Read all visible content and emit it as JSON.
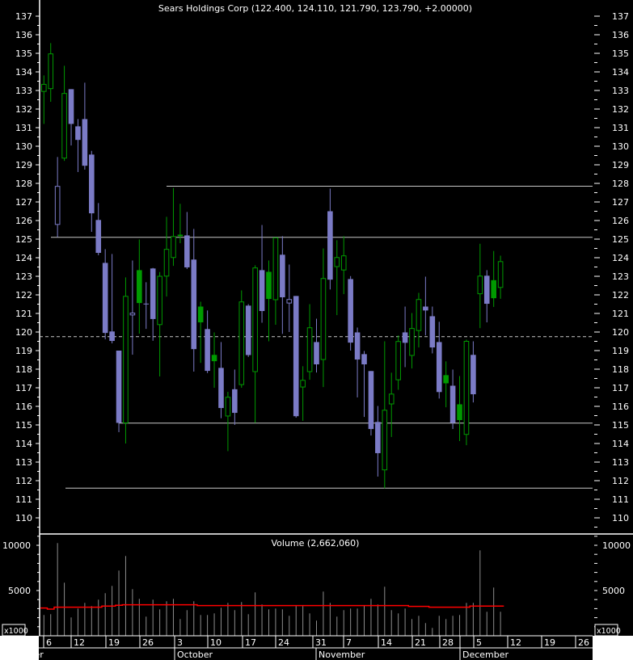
{
  "chart_data": [
    {
      "type": "candlestick",
      "title": "Sears Holdings Corp (122.400, 124.110, 121.790, 123.790, +2.00000)",
      "ylim": [
        109.5,
        137.5
      ],
      "y_ticks": [
        137,
        136,
        135,
        134,
        133,
        132,
        131,
        130,
        129,
        128,
        127,
        126,
        125,
        124,
        123,
        122,
        121,
        120,
        119,
        118,
        117,
        116,
        115,
        114,
        113,
        112,
        111,
        110
      ],
      "colors": {
        "up": "#009a00",
        "down": "#7b7bc6",
        "lines": "#c8c8c8"
      },
      "horizontal_lines": [
        127.85,
        125.1,
        115.1,
        111.6
      ],
      "dashed_line": 119.75,
      "candles_fields": [
        "date",
        "open",
        "high",
        "low",
        "close"
      ],
      "candles": [
        [
          "Sep 6",
          132.95,
          133.81,
          131.2,
          133.33
        ],
        [
          "Sep 7",
          133.1,
          135.55,
          132.39,
          134.97
        ],
        [
          "Sep 8",
          125.79,
          129.42,
          125.11,
          127.84
        ],
        [
          "Sep 9",
          129.36,
          134.33,
          129.21,
          132.84
        ],
        [
          "Sep 12",
          133.07,
          133.07,
          130.04,
          131.2
        ],
        [
          "Sep 13",
          131.07,
          131.46,
          128.61,
          130.34
        ],
        [
          "Sep 14",
          131.46,
          133.42,
          128.74,
          128.95
        ],
        [
          "Sep 15",
          129.55,
          129.75,
          125.39,
          126.39
        ],
        [
          "Sep 16",
          126.03,
          126.94,
          124.13,
          124.26
        ],
        [
          "Sep 19",
          123.72,
          124.46,
          119.61,
          119.95
        ],
        [
          "Sep 20",
          120.03,
          124.2,
          119.39,
          119.52
        ],
        [
          "Sep 21",
          119.0,
          119.0,
          114.61,
          115.11
        ],
        [
          "Sep 22",
          115.11,
          122.94,
          114.0,
          121.92
        ],
        [
          "Sep 23",
          120.92,
          123.85,
          118.78,
          121.02
        ],
        [
          "Sep 26",
          123.33,
          124.98,
          119.91,
          121.56
        ],
        [
          "Sep 27",
          121.53,
          122.68,
          120.17,
          121.53
        ],
        [
          "Sep 28",
          123.42,
          123.45,
          119.53,
          120.7
        ],
        [
          "Sep 29",
          120.4,
          123.23,
          117.61,
          123.0
        ],
        [
          "Sep 30",
          123.01,
          126.2,
          121.91,
          124.45
        ],
        [
          "Oct 3",
          124.01,
          127.75,
          123.56,
          125.14
        ],
        [
          "Oct 4",
          125.24,
          126.9,
          124.78,
          125.16
        ],
        [
          "Oct 5",
          125.2,
          126.46,
          123.39,
          123.48
        ],
        [
          "Oct 6",
          123.9,
          125.55,
          117.87,
          119.08
        ],
        [
          "Oct 7",
          121.37,
          121.63,
          118.34,
          120.52
        ],
        [
          "Oct 10",
          120.16,
          121.16,
          117.79,
          117.91
        ],
        [
          "Oct 11",
          118.77,
          119.98,
          117.0,
          118.43
        ],
        [
          "Oct 12",
          118.07,
          119.46,
          115.36,
          115.91
        ],
        [
          "Oct 13",
          115.48,
          116.78,
          113.59,
          116.49
        ],
        [
          "Oct 14",
          116.92,
          117.98,
          115.0,
          115.65
        ],
        [
          "Oct 17",
          117.17,
          122.24,
          117.0,
          121.62
        ],
        [
          "Oct 18",
          121.42,
          121.5,
          118.66,
          118.76
        ],
        [
          "Oct 19",
          117.87,
          123.59,
          115.11,
          123.45
        ],
        [
          "Oct 20",
          123.33,
          125.76,
          120.5,
          121.13
        ],
        [
          "Oct 21",
          123.24,
          123.85,
          119.5,
          121.78
        ],
        [
          "Oct 24",
          121.74,
          125.07,
          120.39,
          125.07
        ],
        [
          "Oct 25",
          124.16,
          125.16,
          119.9,
          121.87
        ],
        [
          "Oct 26",
          121.56,
          123.63,
          120.0,
          121.75
        ],
        [
          "Oct 27",
          121.94,
          121.94,
          115.39,
          115.47
        ],
        [
          "Oct 28",
          117.04,
          118.16,
          115.22,
          117.4
        ],
        [
          "Oct 31",
          117.87,
          121.5,
          117.43,
          120.23
        ],
        [
          "Nov 1",
          119.46,
          120.72,
          117.82,
          118.26
        ],
        [
          "Nov 2",
          118.52,
          124.5,
          117.04,
          122.88
        ],
        [
          "Nov 3",
          126.5,
          127.72,
          122.29,
          122.82
        ],
        [
          "Nov 4",
          123.52,
          124.94,
          120.91,
          124.01
        ],
        [
          "Nov 7",
          123.34,
          125.16,
          122.04,
          124.1
        ],
        [
          "Nov 8",
          122.85,
          123.01,
          119.0,
          119.43
        ],
        [
          "Nov 9",
          119.98,
          120.24,
          116.48,
          118.52
        ],
        [
          "Nov 10",
          118.81,
          118.98,
          115.43,
          118.26
        ],
        [
          "Nov 11",
          117.9,
          117.9,
          114.43,
          114.78
        ],
        [
          "Nov 14",
          115.16,
          116.02,
          112.22,
          113.48
        ],
        [
          "Nov 15",
          112.58,
          119.5,
          111.59,
          115.79
        ],
        [
          "Nov 16",
          116.13,
          117.81,
          114.35,
          116.66
        ],
        [
          "Nov 17",
          117.43,
          119.82,
          116.89,
          119.49
        ],
        [
          "Nov 18",
          119.98,
          121.37,
          118.11,
          119.42
        ],
        [
          "Nov 21",
          118.74,
          121.02,
          118.04,
          120.19
        ],
        [
          "Nov 22",
          120.08,
          122.11,
          119.17,
          121.75
        ],
        [
          "Nov 23",
          121.37,
          122.98,
          119.82,
          121.16
        ],
        [
          "Nov 25",
          120.85,
          121.37,
          118.85,
          119.17
        ],
        [
          "Nov 28",
          119.46,
          120.55,
          116.42,
          116.77
        ],
        [
          "Nov 29",
          117.68,
          118.42,
          115.95,
          117.24
        ],
        [
          "Nov 30",
          117.11,
          117.98,
          114.78,
          115.11
        ],
        [
          "Dec 1",
          116.11,
          117.63,
          114.13,
          115.26
        ],
        [
          "Dec 2",
          114.49,
          119.59,
          113.91,
          119.5
        ],
        [
          "Dec 5",
          118.77,
          119.5,
          116.21,
          116.65
        ],
        [
          "Dec 6",
          122.06,
          124.75,
          120.21,
          123.01
        ],
        [
          "Dec 7",
          123.03,
          123.33,
          120.52,
          121.52
        ],
        [
          "Dec 8",
          122.79,
          124.36,
          121.35,
          121.82
        ],
        [
          "Dec 9",
          122.4,
          124.11,
          121.79,
          123.79
        ]
      ]
    },
    {
      "type": "bar",
      "title": "Volume (2,662,060)",
      "unit_label": "x1000",
      "ylim": [
        0,
        10500
      ],
      "y_ticks": [
        10000,
        5000
      ],
      "colors": {
        "bars": "#8c8c8c",
        "average": "#ff0000"
      },
      "values": [
        2295,
        2384,
        10242,
        5866,
        2027,
        3009,
        3634,
        3277,
        3991,
        4706,
        5509,
        7206,
        8813,
        5152,
        4081,
        2116,
        3991,
        2920,
        3813,
        4081,
        1848,
        2830,
        3813,
        2295,
        2295,
        2473,
        3098,
        3634,
        2830,
        3723,
        2384,
        4795,
        3456,
        2920,
        3009,
        2920,
        2205,
        3277,
        3277,
        2473,
        1670,
        4884,
        3634,
        2116,
        2830,
        3009,
        3009,
        3366,
        4081,
        3456,
        5420,
        2830,
        2473,
        3009,
        1848,
        2205,
        1402,
        866,
        2205,
        1848,
        2205,
        2295,
        3634,
        3634,
        9438,
        2652,
        5331,
        2652
      ],
      "average": [
        3069,
        2950,
        3158,
        3158,
        3158,
        3158,
        3158,
        3158,
        3158,
        3277,
        3277,
        3366,
        3426,
        3426,
        3426,
        3426,
        3426,
        3426,
        3426,
        3426,
        3426,
        3426,
        3426,
        3337,
        3337,
        3337,
        3337,
        3337,
        3337,
        3337,
        3337,
        3337,
        3337,
        3337,
        3337,
        3337,
        3337,
        3337,
        3337,
        3337,
        3337,
        3337,
        3337,
        3337,
        3337,
        3337,
        3337,
        3337,
        3337,
        3337,
        3337,
        3337,
        3337,
        3337,
        3247,
        3247,
        3247,
        3158,
        3158,
        3158,
        3158,
        3158,
        3158,
        3277,
        3277,
        3277,
        3277,
        3277
      ]
    }
  ],
  "x_axis": {
    "day_labels": [
      "6",
      "12",
      "19",
      "26",
      "3",
      "10",
      "17",
      "24",
      "31",
      "7",
      "14",
      "21",
      "28",
      "",
      "5",
      "12",
      "19",
      "26"
    ],
    "month_labels": [
      "September",
      "October",
      "November",
      "December"
    ]
  }
}
